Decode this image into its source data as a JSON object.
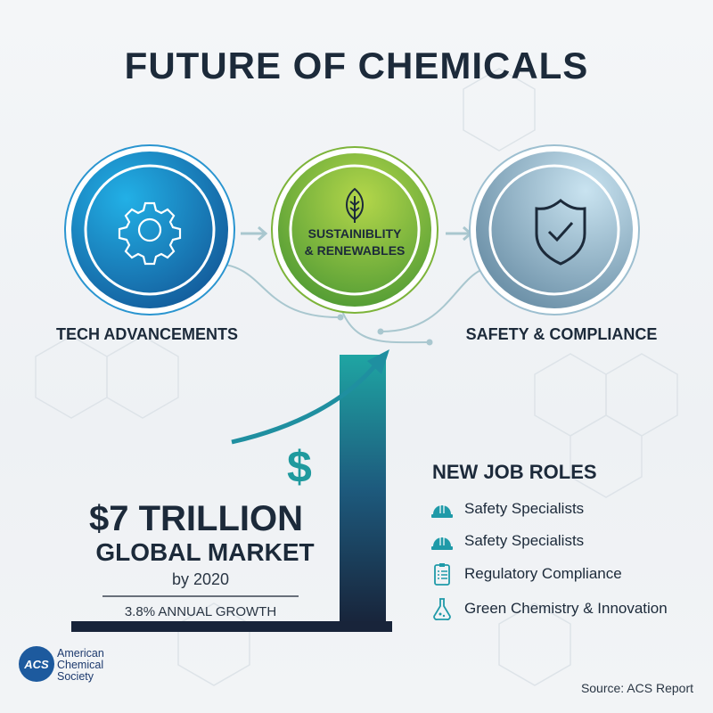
{
  "title": "FUTURE OF CHEMICALS",
  "pillars": [
    {
      "label": "TECH ADVANCEMENTS",
      "icon": "gear-icon",
      "color": "#1a8fd0"
    },
    {
      "label_line1": "SUSTAINIBLITY",
      "label_line2": "& RENEWABLES",
      "icon": "leaf-icon",
      "color": "#8cc43c"
    },
    {
      "label": "SAFETY & COMPLIANCE",
      "icon": "shield-check-icon",
      "color": "#8fb3c8"
    }
  ],
  "market": {
    "symbol": "$",
    "value": "$7 TRILLION",
    "subtitle": "GLOBAL MARKET",
    "year": "by 2020",
    "growth": "3.8% ANNUAL GROWTH"
  },
  "roles": {
    "heading": "NEW JOB ROLES",
    "items": [
      {
        "label": "Safety Specialists",
        "icon": "hard-hat-icon"
      },
      {
        "label": "Safety Specialists",
        "icon": "hard-hat-icon"
      },
      {
        "label": "Regulatory Compliance",
        "icon": "clipboard-icon"
      },
      {
        "label": "Green Chemistry & Innovation",
        "icon": "flask-icon"
      }
    ]
  },
  "logo": {
    "abbr": "ACS",
    "line1": "American",
    "line2": "Chemical",
    "line3": "Society"
  },
  "source": "Source: ACS Report",
  "colors": {
    "navy": "#1c2a3a",
    "teal": "#1f9a9e",
    "blue": "#1a8fd0",
    "green": "#8cc43c"
  }
}
